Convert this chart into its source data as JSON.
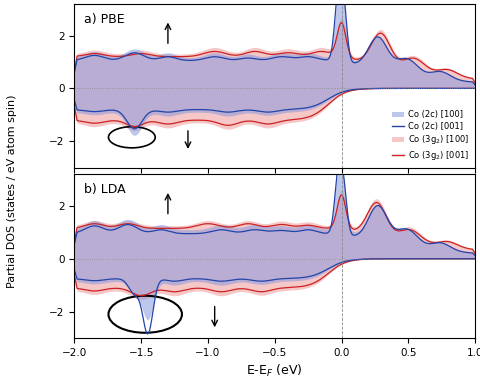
{
  "title_a": "a) PBE",
  "title_b": "b) LDA",
  "xlabel": "E-E$_F$ (eV)",
  "ylabel": "Partial DOS (states / eV atom spin)",
  "xlim": [
    -2.0,
    1.0
  ],
  "ylim_a": [
    -3.0,
    3.2
  ],
  "ylim_b": [
    -3.0,
    3.2
  ],
  "color_2c": "#8899dd",
  "color_3g2": "#ee9999",
  "yticks": [
    -2,
    0,
    2
  ]
}
